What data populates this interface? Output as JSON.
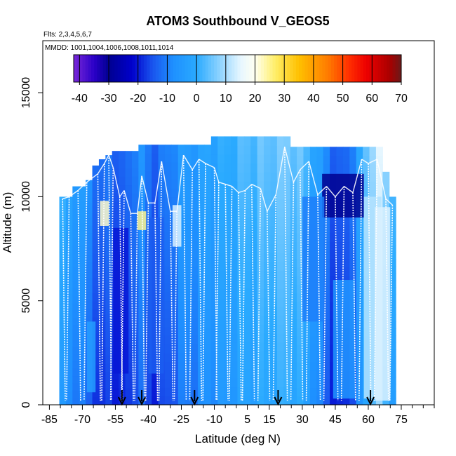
{
  "chart_data": {
    "type": "heatmap",
    "title": "ATOM3 Southbound V_GEOS5",
    "subtitle_flights": "Flts: 2,3,4,5,6,7",
    "subtitle_dates": "MMDD: 1001,1004,1006,1008,1011,1014",
    "xlabel": "Latitude (deg N)",
    "ylabel": "Altitude (m)",
    "xlim": [
      -88,
      90
    ],
    "ylim": [
      0,
      17500
    ],
    "x_ticks": [
      -85,
      -70,
      -55,
      -40,
      -25,
      -10,
      5,
      15,
      30,
      45,
      60,
      75
    ],
    "x_tick_labels": [
      "-85",
      "-70",
      "-55",
      "-40",
      "-25",
      "-10",
      "5",
      "15",
      "30",
      "45",
      "60",
      "75"
    ],
    "x_minor_ticks": [
      -80,
      -75,
      -65,
      -60,
      -50,
      -45,
      -35,
      -30,
      -20,
      -15,
      -5,
      0,
      10,
      20,
      25,
      35,
      40,
      50,
      55,
      65,
      70,
      80,
      85,
      90
    ],
    "y_ticks": [
      0,
      5000,
      10000,
      15000
    ],
    "y_tick_labels": [
      "0",
      "5000",
      "10000",
      "15000"
    ],
    "colorbar": {
      "min": -42,
      "max": 70,
      "ticks": [
        -40,
        -30,
        -20,
        -10,
        0,
        10,
        20,
        30,
        40,
        50,
        60,
        70
      ],
      "tick_labels": [
        "-40",
        "-30",
        "-20",
        "-10",
        "0",
        "10",
        "20",
        "30",
        "40",
        "50",
        "60",
        "70"
      ],
      "stops": [
        {
          "v": -42,
          "c": "#7a28d8"
        },
        {
          "v": -35,
          "c": "#2a00c8"
        },
        {
          "v": -30,
          "c": "#000090"
        },
        {
          "v": -22,
          "c": "#0000cc"
        },
        {
          "v": -15,
          "c": "#1a55ee"
        },
        {
          "v": -8,
          "c": "#1e90ff"
        },
        {
          "v": 0,
          "c": "#2aaaff"
        },
        {
          "v": 8,
          "c": "#8fd4ff"
        },
        {
          "v": 15,
          "c": "#e6f6ff"
        },
        {
          "v": 20,
          "c": "#fffff0"
        },
        {
          "v": 27,
          "c": "#ffee66"
        },
        {
          "v": 35,
          "c": "#ffc000"
        },
        {
          "v": 45,
          "c": "#ff7b00"
        },
        {
          "v": 52,
          "c": "#ff3000"
        },
        {
          "v": 58,
          "c": "#ee0000"
        },
        {
          "v": 66,
          "c": "#aa0000"
        },
        {
          "v": 70,
          "c": "#6a1a1a"
        }
      ]
    },
    "flight_marker_latitudes": [
      -52,
      -43,
      -19,
      19,
      61
    ],
    "profile_latitudes": [
      -79,
      -76,
      -72,
      -68,
      -63,
      -60,
      -58,
      -56,
      -53,
      -51,
      -48,
      -45,
      -43,
      -40,
      -37,
      -34,
      -30,
      -27,
      -24,
      -20,
      -17,
      -14,
      -10,
      -8,
      -5,
      -2,
      1,
      4,
      7,
      11,
      14,
      18,
      22,
      26,
      29,
      33,
      37,
      41,
      45,
      49,
      53,
      57,
      60,
      64,
      68,
      71
    ],
    "profile_top_altitudes": [
      9900,
      10000,
      10300,
      10700,
      11100,
      11600,
      12000,
      11400,
      10000,
      10300,
      9200,
      9200,
      11000,
      9700,
      9700,
      11700,
      9300,
      9300,
      12000,
      11300,
      11800,
      11600,
      11400,
      10700,
      10600,
      10500,
      10200,
      10300,
      10600,
      10400,
      9300,
      10100,
      12400,
      10700,
      11300,
      11700,
      10100,
      10500,
      10000,
      10500,
      10200,
      11800,
      11600,
      11800,
      9900,
      9600
    ],
    "cross_section_columns": [
      {
        "lat": -79,
        "top": 10000,
        "v": -2
      },
      {
        "lat": -76,
        "top": 10000,
        "v": -4
      },
      {
        "lat": -73,
        "top": 10500,
        "v": -5
      },
      {
        "lat": -70,
        "top": 10500,
        "v": -7
      },
      {
        "lat": -67,
        "top": 10800,
        "v": -9
      },
      {
        "lat": -64,
        "top": 11500,
        "v": -12
      },
      {
        "lat": -61,
        "top": 11800,
        "v": -15
      },
      {
        "lat": -58,
        "top": 12000,
        "v": -12
      },
      {
        "lat": -55,
        "top": 12200,
        "v": -14
      },
      {
        "lat": -52,
        "top": 12200,
        "v": -16
      },
      {
        "lat": -49,
        "top": 12200,
        "v": -13
      },
      {
        "lat": -46,
        "top": 12200,
        "v": -10
      },
      {
        "lat": -43,
        "top": 12500,
        "v": -9
      },
      {
        "lat": -40,
        "top": 12500,
        "v": -12
      },
      {
        "lat": -37,
        "top": 12500,
        "v": -14
      },
      {
        "lat": -34,
        "top": 12500,
        "v": -13
      },
      {
        "lat": -31,
        "top": 12500,
        "v": -11
      },
      {
        "lat": -28,
        "top": 12500,
        "v": -9
      },
      {
        "lat": -25,
        "top": 12500,
        "v": -7
      },
      {
        "lat": -22,
        "top": 12500,
        "v": -6
      },
      {
        "lat": -19,
        "top": 12500,
        "v": -6
      },
      {
        "lat": -16,
        "top": 12500,
        "v": -5
      },
      {
        "lat": -13,
        "top": 12500,
        "v": -3
      },
      {
        "lat": -10,
        "top": 12900,
        "v": -3
      },
      {
        "lat": -7,
        "top": 12900,
        "v": -2
      },
      {
        "lat": -4,
        "top": 12900,
        "v": -1
      },
      {
        "lat": -1,
        "top": 12900,
        "v": 0
      },
      {
        "lat": 2,
        "top": 12900,
        "v": 1
      },
      {
        "lat": 5,
        "top": 12900,
        "v": 2
      },
      {
        "lat": 8,
        "top": 12900,
        "v": 2
      },
      {
        "lat": 11,
        "top": 12900,
        "v": 3
      },
      {
        "lat": 14,
        "top": 12900,
        "v": 3
      },
      {
        "lat": 17,
        "top": 12900,
        "v": 4
      },
      {
        "lat": 20,
        "top": 12900,
        "v": 4
      },
      {
        "lat": 23,
        "top": 12900,
        "v": 5
      },
      {
        "lat": 26,
        "top": 12400,
        "v": 4
      },
      {
        "lat": 29,
        "top": 12400,
        "v": 3
      },
      {
        "lat": 32,
        "top": 12400,
        "v": 1
      },
      {
        "lat": 35,
        "top": 12400,
        "v": -2
      },
      {
        "lat": 38,
        "top": 12400,
        "v": -6
      },
      {
        "lat": 41,
        "top": 12400,
        "v": -10
      },
      {
        "lat": 44,
        "top": 12400,
        "v": -14
      },
      {
        "lat": 47,
        "top": 12400,
        "v": -16
      },
      {
        "lat": 50,
        "top": 12400,
        "v": -14
      },
      {
        "lat": 53,
        "top": 12400,
        "v": -10
      },
      {
        "lat": 56,
        "top": 12400,
        "v": -4
      },
      {
        "lat": 59,
        "top": 12400,
        "v": 3
      },
      {
        "lat": 62,
        "top": 12400,
        "v": 9
      },
      {
        "lat": 65,
        "top": 12400,
        "v": 12
      },
      {
        "lat": 68,
        "top": 11200,
        "v": 6
      },
      {
        "lat": 71,
        "top": 10000,
        "v": 2
      }
    ],
    "patches": [
      {
        "lat0": 39,
        "lat1": 58,
        "alt0": 9000,
        "alt1": 11100,
        "v": -30
      },
      {
        "lat0": 30,
        "lat1": 40,
        "alt0": 4000,
        "alt1": 10000,
        "v": -10
      },
      {
        "lat0": -56,
        "lat1": -49,
        "alt0": 1500,
        "alt1": 8500,
        "v": -20
      },
      {
        "lat0": -62,
        "lat1": -58,
        "alt0": 8600,
        "alt1": 9800,
        "v": 22
      },
      {
        "lat0": -45,
        "lat1": -41,
        "alt0": 8400,
        "alt1": 9300,
        "v": 25
      },
      {
        "lat0": -29,
        "lat1": -25,
        "alt0": 7600,
        "alt1": 9600,
        "v": 14
      },
      {
        "lat0": -40,
        "lat1": -33,
        "alt0": 1500,
        "alt1": 9000,
        "v": -14
      },
      {
        "lat0": -68,
        "lat1": -64,
        "alt0": 600,
        "alt1": 4000,
        "v": -4
      },
      {
        "lat0": 58,
        "lat1": 66,
        "alt0": 300,
        "alt1": 10000,
        "v": 11
      },
      {
        "lat0": 63,
        "lat1": 70,
        "alt0": 200,
        "alt1": 9500,
        "v": 14
      },
      {
        "lat0": 44,
        "lat1": 54,
        "alt0": 300,
        "alt1": 6000,
        "v": -6
      }
    ]
  }
}
